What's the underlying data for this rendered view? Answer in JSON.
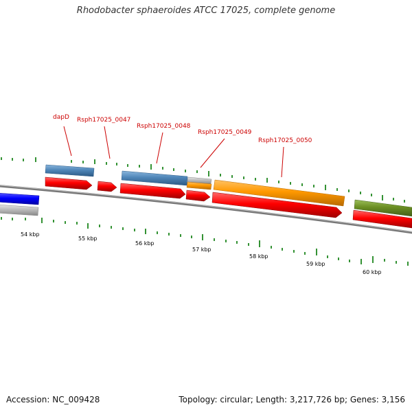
{
  "title": "Rhodobacter sphaeroides ATCC 17025, complete genome",
  "footer": {
    "accession": "Accession: NC_009428",
    "stats": "Topology: circular; Length: 3,217,726 bp; Genes: 3,156"
  },
  "colors": {
    "label_red": "#cc0000",
    "forward_red": "#ff0000",
    "steel_blue": "#4f86b8",
    "orange": "#ff9900",
    "olive": "#6b8e23",
    "blue": "#0000ff",
    "gray": "#bbbbbb",
    "tick_green": "#007700",
    "backbone": "#777777"
  },
  "scale_labels": [
    "54 kbp",
    "55 kbp",
    "56 kbp",
    "57 kbp",
    "58 kbp",
    "59 kbp",
    "60 kbp"
  ],
  "gene_labels": [
    "dapD",
    "Rsph17025_0047",
    "Rsph17025_0048",
    "Rsph17025_0049",
    "Rsph17025_0050"
  ]
}
